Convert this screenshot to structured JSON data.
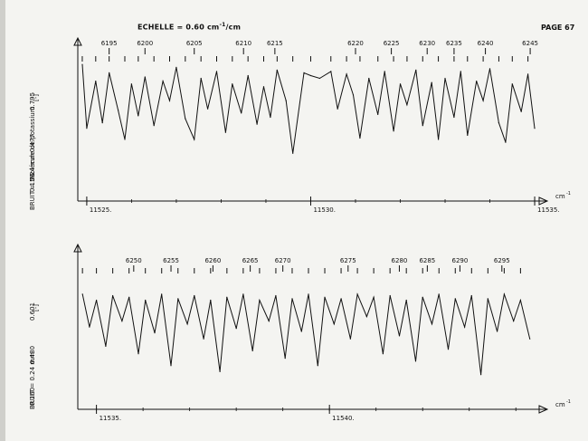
{
  "header": {
    "scale_prefix": "ECHELLE = 0.60 cm",
    "scale_exp": "-1",
    "scale_suffix": "/cm",
    "page_label": "PAGE 67"
  },
  "molecule_label": "Molécule de potassium",
  "chart_data": [
    {
      "type": "line",
      "x_unit": "cm-1",
      "x_unit_label": "cm",
      "x_unit_exp": "-1",
      "xlim": [
        11524.8,
        11535.1
      ],
      "x_tick_values": [
        11525,
        11530,
        11535
      ],
      "x_tick_labels": [
        "11525.",
        "11530.",
        "11535."
      ],
      "y_axis_label": "BRUIT = 0.24 mm",
      "y_tick_labels": [
        "0.159",
        "0.477",
        "0.795"
      ],
      "y_marker": "[-]",
      "line_numbers": [
        "6195",
        "6200",
        "6205",
        "6210",
        "6215",
        "6220",
        "6225",
        "6230",
        "6235",
        "6240",
        "6245"
      ],
      "line_number_x": [
        11525.5,
        11526.3,
        11527.4,
        11528.5,
        11529.2,
        11531.0,
        11531.8,
        11532.6,
        11533.2,
        11533.9,
        11534.9
      ],
      "series": [
        {
          "x": [
            11524.9,
            11525.0,
            11525.2,
            11525.35,
            11525.5,
            11525.7,
            11525.85,
            11526.0,
            11526.15,
            11526.3,
            11526.5,
            11526.7,
            11526.85,
            11527.0,
            11527.2,
            11527.4,
            11527.55,
            11527.7,
            11527.9,
            11528.1,
            11528.25,
            11528.45,
            11528.6,
            11528.8,
            11528.95,
            11529.1,
            11529.25,
            11529.45,
            11529.6,
            11529.85,
            11530.0,
            11530.2,
            11530.45,
            11530.6,
            11530.8,
            11530.95,
            11531.1,
            11531.3,
            11531.5,
            11531.65,
            11531.85,
            11532.0,
            11532.15,
            11532.35,
            11532.5,
            11532.7,
            11532.85,
            11533.0,
            11533.2,
            11533.35,
            11533.5,
            11533.7,
            11533.85,
            11534.0,
            11534.2,
            11534.35,
            11534.5,
            11534.7,
            11534.85,
            11535.0
          ],
          "y": [
            0.84,
            0.38,
            0.72,
            0.42,
            0.78,
            0.51,
            0.3,
            0.7,
            0.47,
            0.75,
            0.4,
            0.72,
            0.58,
            0.82,
            0.45,
            0.3,
            0.74,
            0.52,
            0.79,
            0.35,
            0.7,
            0.49,
            0.76,
            0.41,
            0.68,
            0.46,
            0.8,
            0.58,
            0.2,
            0.78,
            0.76,
            0.74,
            0.79,
            0.52,
            0.77,
            0.62,
            0.31,
            0.74,
            0.48,
            0.79,
            0.36,
            0.7,
            0.55,
            0.8,
            0.4,
            0.71,
            0.3,
            0.74,
            0.46,
            0.79,
            0.33,
            0.72,
            0.58,
            0.81,
            0.42,
            0.28,
            0.7,
            0.5,
            0.77,
            0.38
          ]
        }
      ]
    },
    {
      "type": "line",
      "x_unit": "cm-1",
      "x_unit_label": "cm",
      "x_unit_exp": "-1",
      "xlim": [
        11534.6,
        11544.5
      ],
      "x_tick_values": [
        11535,
        11540
      ],
      "x_tick_labels": [
        "11535.",
        "11540."
      ],
      "y_axis_label": "BRUIT = 0.24 mm",
      "y_tick_labels": [
        "0.160",
        "0.480",
        "0.601"
      ],
      "y_marker": "[-]",
      "line_numbers": [
        "6250",
        "6255",
        "6260",
        "6265",
        "6270",
        "6275",
        "6280",
        "6285",
        "6290",
        "6295"
      ],
      "line_number_x": [
        11535.8,
        11536.6,
        11537.5,
        11538.3,
        11539.0,
        11540.4,
        11541.5,
        11542.1,
        11542.8,
        11543.7
      ],
      "series": [
        {
          "x": [
            11534.7,
            11534.85,
            11535.0,
            11535.2,
            11535.35,
            11535.55,
            11535.7,
            11535.9,
            11536.05,
            11536.25,
            11536.4,
            11536.6,
            11536.75,
            11536.95,
            11537.1,
            11537.3,
            11537.45,
            11537.65,
            11537.8,
            11538.0,
            11538.15,
            11538.35,
            11538.5,
            11538.7,
            11538.85,
            11539.05,
            11539.2,
            11539.4,
            11539.55,
            11539.75,
            11539.9,
            11540.1,
            11540.25,
            11540.45,
            11540.6,
            11540.8,
            11540.95,
            11541.15,
            11541.3,
            11541.5,
            11541.65,
            11541.85,
            11542.0,
            11542.2,
            11542.35,
            11542.55,
            11542.7,
            11542.9,
            11543.05,
            11543.25,
            11543.4,
            11543.6,
            11543.75,
            11543.95,
            11544.1,
            11544.3
          ],
          "y": [
            0.7,
            0.48,
            0.66,
            0.35,
            0.69,
            0.52,
            0.68,
            0.3,
            0.66,
            0.44,
            0.7,
            0.22,
            0.67,
            0.5,
            0.69,
            0.4,
            0.66,
            0.18,
            0.68,
            0.47,
            0.7,
            0.32,
            0.66,
            0.52,
            0.69,
            0.27,
            0.67,
            0.45,
            0.7,
            0.22,
            0.68,
            0.5,
            0.67,
            0.4,
            0.7,
            0.55,
            0.68,
            0.3,
            0.69,
            0.42,
            0.66,
            0.25,
            0.68,
            0.5,
            0.7,
            0.33,
            0.67,
            0.48,
            0.69,
            0.16,
            0.67,
            0.45,
            0.7,
            0.52,
            0.66,
            0.4
          ]
        }
      ]
    }
  ]
}
